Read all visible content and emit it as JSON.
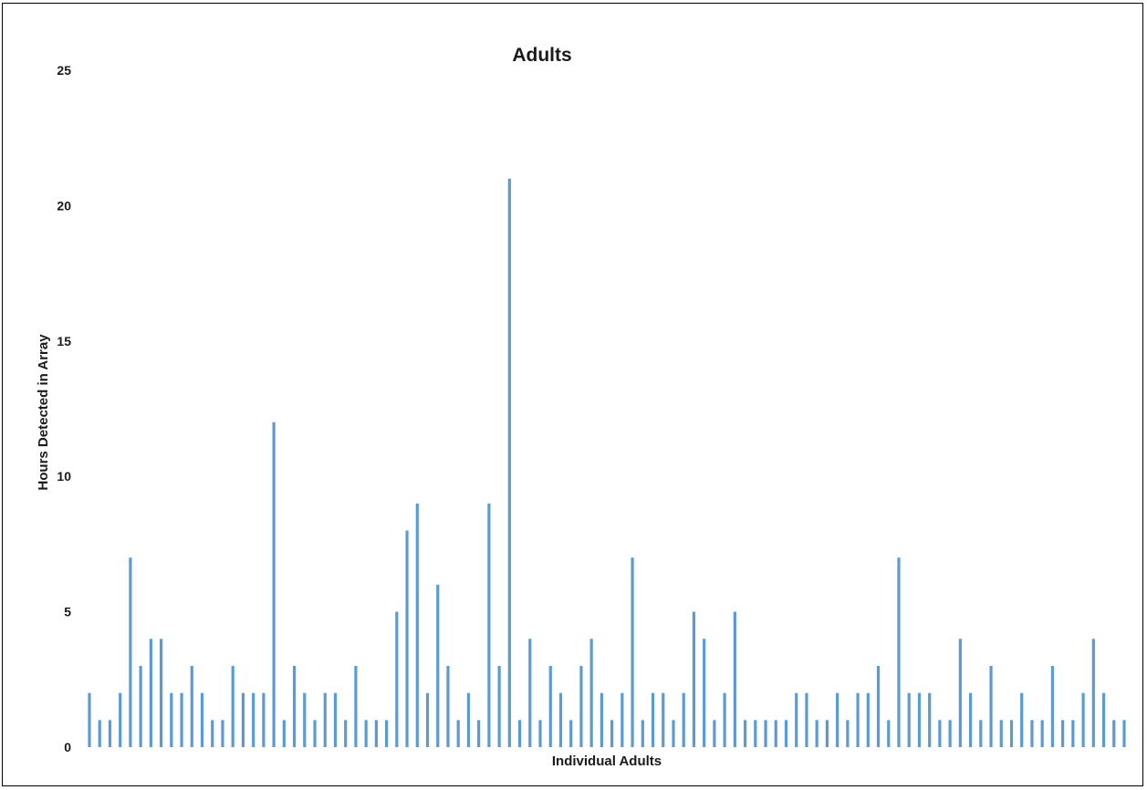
{
  "chart_data": {
    "type": "bar",
    "title": "Adults",
    "xlabel": "Individual Adults",
    "ylabel": "Hours Detected in Array",
    "ylim": [
      0,
      25
    ],
    "yticks": [
      0,
      5,
      10,
      15,
      20,
      25
    ],
    "grid": false,
    "legend": "none",
    "bar_color": "#5b9bd5",
    "series": [
      {
        "values": [
          2,
          1,
          1,
          2,
          7,
          3,
          4,
          4,
          2,
          2,
          3,
          2,
          1,
          1,
          3,
          2,
          2,
          2,
          12,
          1,
          3,
          2,
          1,
          2,
          2,
          1,
          3,
          1,
          1,
          1,
          5,
          8,
          9,
          2,
          6,
          3,
          1,
          2,
          1,
          9,
          3,
          21,
          1,
          4,
          1,
          3,
          2,
          1,
          3,
          4,
          2,
          1,
          2,
          7,
          1,
          2,
          2,
          1,
          2,
          5,
          4,
          1,
          2,
          5,
          1,
          1,
          1,
          1,
          1,
          2,
          2,
          1,
          1,
          2,
          1,
          2,
          2,
          3,
          1,
          7,
          2,
          2,
          2,
          1,
          1,
          4,
          2,
          1,
          3,
          1,
          1,
          2,
          1,
          1,
          3,
          1,
          1,
          2,
          4,
          2,
          1,
          1
        ]
      }
    ]
  }
}
